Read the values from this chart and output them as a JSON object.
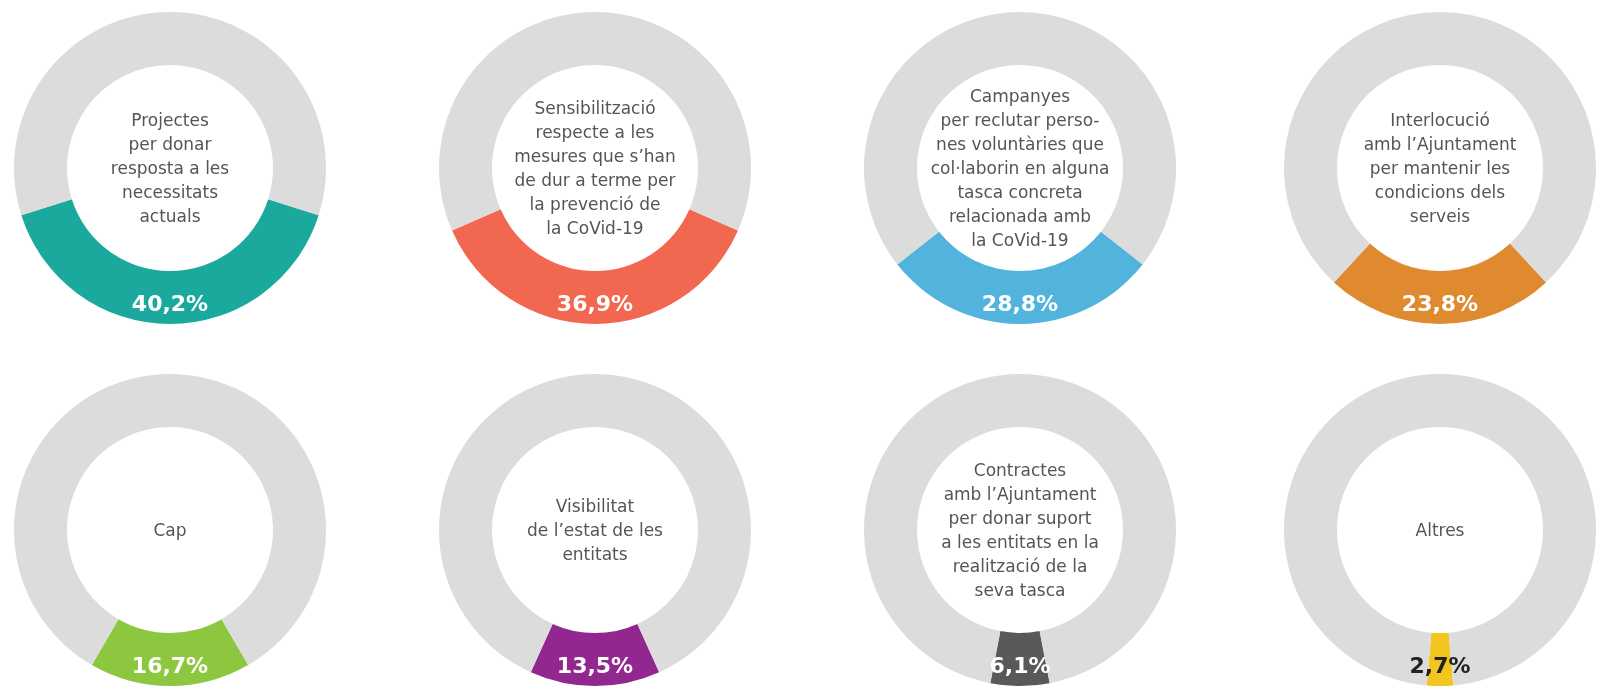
{
  "chart_data": [
    {
      "type": "donut",
      "title": "Projectes\nper donar\nresposta a les\nnecessitats\nactuals",
      "categories": [
        null,
        null
      ],
      "values": [
        40.2,
        59.8
      ],
      "colors": [
        "#1ba99e",
        "#dcdcdc"
      ],
      "value_labels": [
        "40,2%",
        null
      ]
    },
    {
      "type": "donut",
      "title": "Sensibilització\nrespecte a les\nmesures que s’han\nde dur a terme per\nla prevenció de\nla CoVid-19",
      "categories": [
        null,
        null
      ],
      "values": [
        36.9,
        63.1
      ],
      "colors": [
        "#f2674f",
        "#dcdcdc"
      ],
      "value_labels": [
        "36,9%",
        null
      ]
    },
    {
      "type": "donut",
      "title": "Campanyes\nper reclutar perso-\nnes voluntàries que\ncol·laborin en alguna\ntasca concreta\nrelacionada amb\nla CoVid-19",
      "categories": [
        null,
        null
      ],
      "values": [
        28.8,
        71.2
      ],
      "colors": [
        "#52b4dc",
        "#dcdcdc"
      ],
      "value_labels": [
        "28,8%",
        null
      ]
    },
    {
      "type": "donut",
      "title": "Interlocució\namb l’Ajuntament\nper mantenir les\ncondicions dels\nserveis",
      "categories": [
        null,
        null
      ],
      "values": [
        23.8,
        76.2
      ],
      "colors": [
        "#e08a30",
        "#dcdcdc"
      ],
      "value_labels": [
        "23,8%",
        null
      ]
    },
    {
      "type": "donut",
      "title": "Cap",
      "categories": [
        null,
        null
      ],
      "values": [
        16.7,
        83.3
      ],
      "colors": [
        "#8dc63f",
        "#dcdcdc"
      ],
      "value_labels": [
        "16,7%",
        null
      ]
    },
    {
      "type": "donut",
      "title": "Visibilitat\nde l’estat de les\nentitats",
      "categories": [
        null,
        null
      ],
      "values": [
        13.5,
        86.5
      ],
      "colors": [
        "#92278f",
        "#dcdcdc"
      ],
      "value_labels": [
        "13,5%",
        null
      ]
    },
    {
      "type": "donut",
      "title": "Contractes\namb l’Ajuntament\nper donar suport\na les entitats en la\nrealització de la\nseva tasca",
      "categories": [
        null,
        null
      ],
      "values": [
        6.1,
        93.9
      ],
      "colors": [
        "#58595b",
        "#dcdcdc"
      ],
      "value_labels": [
        "6,1%",
        null
      ]
    },
    {
      "type": "donut",
      "title": "Altres",
      "categories": [
        null,
        null
      ],
      "values": [
        2.7,
        97.3
      ],
      "colors": [
        "#f2c521",
        "#dcdcdc"
      ],
      "value_labels": [
        "2,7%",
        null
      ]
    }
  ]
}
